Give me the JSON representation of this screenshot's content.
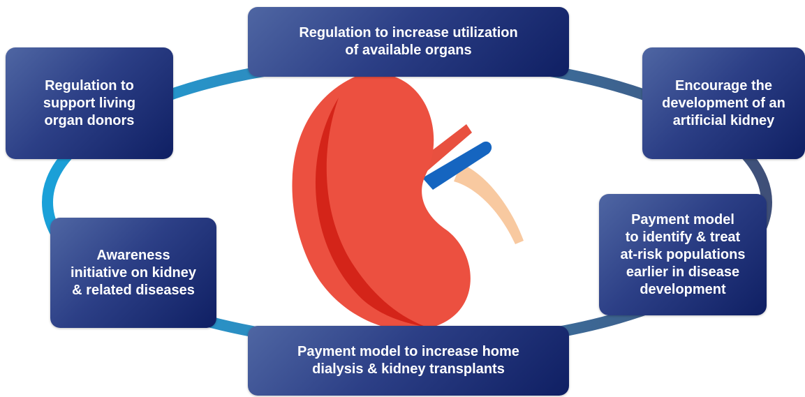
{
  "nodes": [
    {
      "lines": [
        "Regulation to increase utilization",
        "of available organs"
      ]
    },
    {
      "lines": [
        "Regulation to",
        "support living",
        "organ donors"
      ]
    },
    {
      "lines": [
        "Encourage the",
        "development of an",
        "artificial kidney"
      ]
    },
    {
      "lines": [
        "Awareness",
        "initiative on kidney",
        "& related diseases"
      ]
    },
    {
      "lines": [
        "Payment model",
        "to identify & treat",
        "at-risk populations",
        "earlier in disease",
        "development"
      ]
    },
    {
      "lines": [
        "Payment model to increase home",
        "dialysis & kidney transplants"
      ]
    }
  ]
}
